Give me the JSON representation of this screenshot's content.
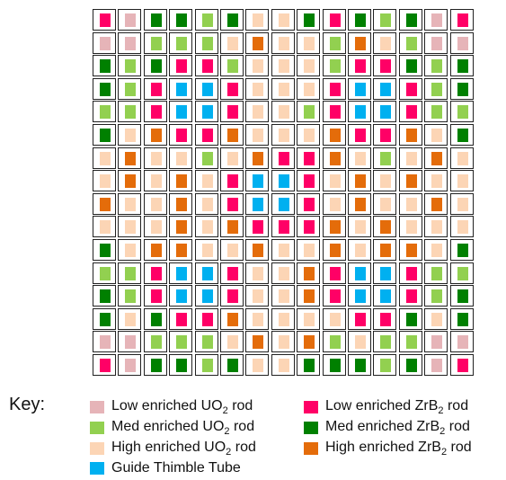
{
  "colors": {
    "L": "#e6b4b8",
    "M": "#92d050",
    "H": "#fcd5b5",
    "G": "#00b0f0",
    "R": "#ff0066",
    "D": "#008000",
    "O": "#e46c0a"
  },
  "grid_rows": [
    [
      "R",
      "L",
      "D",
      "D",
      "M",
      "D",
      "H",
      "H",
      "D",
      "R",
      "D",
      "M",
      "D",
      "L",
      "R"
    ],
    [
      "L",
      "L",
      "M",
      "M",
      "M",
      "H",
      "O",
      "H",
      "H",
      "M",
      "O",
      "H",
      "M",
      "L",
      "L"
    ],
    [
      "D",
      "M",
      "D",
      "R",
      "R",
      "M",
      "H",
      "H",
      "H",
      "M",
      "R",
      "R",
      "D",
      "M",
      "D"
    ],
    [
      "D",
      "M",
      "R",
      "G",
      "G",
      "R",
      "H",
      "H",
      "H",
      "R",
      "G",
      "G",
      "R",
      "M",
      "D"
    ],
    [
      "M",
      "M",
      "R",
      "G",
      "G",
      "R",
      "H",
      "H",
      "M",
      "R",
      "G",
      "G",
      "R",
      "M",
      "M"
    ],
    [
      "D",
      "H",
      "O",
      "R",
      "R",
      "O",
      "H",
      "H",
      "H",
      "O",
      "R",
      "R",
      "O",
      "H",
      "D"
    ],
    [
      "H",
      "O",
      "H",
      "H",
      "M",
      "H",
      "O",
      "R",
      "R",
      "O",
      "H",
      "M",
      "H",
      "O",
      "H"
    ],
    [
      "H",
      "O",
      "H",
      "O",
      "H",
      "R",
      "G",
      "G",
      "R",
      "H",
      "O",
      "H",
      "O",
      "H",
      "H"
    ],
    [
      "O",
      "H",
      "H",
      "O",
      "H",
      "R",
      "G",
      "G",
      "R",
      "H",
      "O",
      "H",
      "H",
      "O",
      "H"
    ],
    [
      "H",
      "H",
      "H",
      "O",
      "H",
      "O",
      "R",
      "R",
      "R",
      "O",
      "H",
      "O",
      "H",
      "H",
      "H"
    ],
    [
      "D",
      "H",
      "O",
      "O",
      "H",
      "H",
      "O",
      "H",
      "H",
      "O",
      "H",
      "O",
      "O",
      "H",
      "D"
    ],
    [
      "M",
      "M",
      "R",
      "G",
      "G",
      "R",
      "H",
      "H",
      "O",
      "R",
      "G",
      "G",
      "R",
      "M",
      "M"
    ],
    [
      "D",
      "M",
      "R",
      "G",
      "G",
      "R",
      "H",
      "H",
      "O",
      "R",
      "G",
      "G",
      "R",
      "M",
      "D"
    ],
    [
      "D",
      "H",
      "D",
      "R",
      "R",
      "O",
      "H",
      "H",
      "H",
      "H",
      "R",
      "R",
      "D",
      "H",
      "D"
    ],
    [
      "L",
      "L",
      "M",
      "M",
      "M",
      "H",
      "O",
      "H",
      "O",
      "M",
      "H",
      "M",
      "M",
      "L",
      "L"
    ],
    [
      "R",
      "L",
      "D",
      "D",
      "M",
      "D",
      "H",
      "H",
      "D",
      "D",
      "D",
      "M",
      "D",
      "L",
      "R"
    ]
  ],
  "key": {
    "title": "Key:",
    "items": [
      {
        "code": "L",
        "text": "Low enriched UO",
        "sub": "2",
        "suffix": " rod"
      },
      {
        "code": "M",
        "text": "Med enriched UO",
        "sub": "2",
        "suffix": " rod"
      },
      {
        "code": "H",
        "text": "High enriched UO",
        "sub": "2",
        "suffix": "  rod"
      },
      {
        "code": "G",
        "text": "Guide Thimble Tube",
        "sub": "",
        "suffix": ""
      },
      {
        "code": "R",
        "text": "Low enriched ZrB",
        "sub": "2",
        "suffix": " rod"
      },
      {
        "code": "D",
        "text": "Med enriched ZrB",
        "sub": "2",
        "suffix": " rod"
      },
      {
        "code": "O",
        "text": "High enriched ZrB",
        "sub": "2",
        "suffix": " rod"
      }
    ]
  }
}
